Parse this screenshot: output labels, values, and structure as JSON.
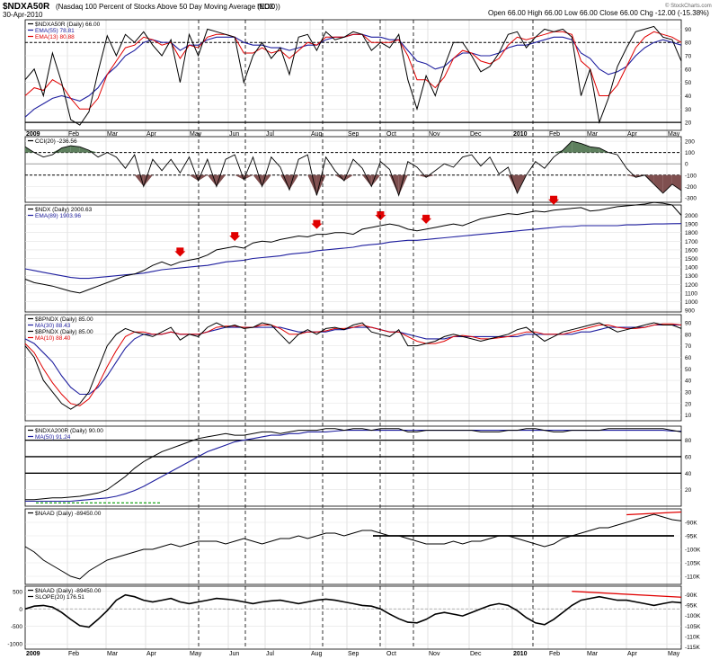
{
  "header": {
    "symbol": "$NDXA50R",
    "description": "(Nasdaq 100 Percent of Stocks Above 50 Day Moving Average (EOD))",
    "exchange": "INDX",
    "date": "30-Apr-2010",
    "ohlc": "Open 66.00  High 66.00  Low 66.00  Close 66.00  Chg -12.00 (-15.38%)",
    "copyright": "© StockCharts.com"
  },
  "x_axis": {
    "months": [
      {
        "label": "2009",
        "bold": true
      },
      {
        "label": "Feb"
      },
      {
        "label": "Mar"
      },
      {
        "label": "Apr"
      },
      {
        "label": "May"
      },
      {
        "label": "Jun"
      },
      {
        "label": "Jul"
      },
      {
        "label": "Aug"
      },
      {
        "label": "Sep"
      },
      {
        "label": "Oct"
      },
      {
        "label": "Nov"
      },
      {
        "label": "Dec"
      },
      {
        "label": "2010",
        "bold": true
      },
      {
        "label": "Feb"
      },
      {
        "label": "Mar"
      },
      {
        "label": "Apr"
      },
      {
        "label": "May"
      }
    ]
  },
  "colors": {
    "price": "#000000",
    "ema": "#1f1f9f",
    "ma": "#e00000",
    "positive_fill": "#5d7f5d",
    "negative_fill": "#7f4f4f",
    "arrow": "#e00000",
    "divergence": "#e00000"
  },
  "panels": [
    {
      "id": "ndxa50r",
      "legend": [
        {
          "text": "$NDXA50R (Daily) 66.00",
          "color": "#000000"
        },
        {
          "text": "EMA(55) 78.81",
          "color": "#1f1f9f"
        },
        {
          "text": "EMA(13) 80.88",
          "color": "#e00000"
        }
      ],
      "ylim": [
        14,
        97
      ],
      "ticks": [
        20,
        30,
        40,
        50,
        60,
        70,
        80,
        90
      ],
      "hlines": [
        80,
        20
      ],
      "series": {
        "price": [
          52,
          60,
          40,
          72,
          50,
          22,
          18,
          28,
          58,
          85,
          70,
          86,
          80,
          88,
          78,
          70,
          82,
          50,
          86,
          70,
          90,
          88,
          86,
          84,
          50,
          70,
          80,
          68,
          76,
          56,
          84,
          86,
          74,
          88,
          82,
          84,
          88,
          86,
          74,
          80,
          76,
          86,
          52,
          30,
          55,
          40,
          62,
          80,
          80,
          70,
          58,
          62,
          72,
          86,
          88,
          76,
          84,
          90,
          88,
          90,
          84,
          40,
          60,
          20,
          38,
          62,
          76,
          88,
          90,
          92,
          84,
          82,
          66
        ],
        "ema": [
          24,
          30,
          34,
          38,
          40,
          38,
          36,
          40,
          46,
          56,
          62,
          70,
          74,
          80,
          82,
          80,
          80,
          74,
          78,
          78,
          82,
          84,
          84,
          84,
          80,
          78,
          78,
          76,
          76,
          74,
          76,
          78,
          78,
          82,
          84,
          84,
          86,
          86,
          84,
          84,
          82,
          82,
          74,
          66,
          64,
          60,
          62,
          68,
          72,
          72,
          70,
          70,
          72,
          76,
          78,
          78,
          80,
          82,
          84,
          84,
          82,
          72,
          68,
          60,
          56,
          58,
          62,
          70,
          76,
          80,
          82,
          80,
          78
        ],
        "ma": [
          40,
          46,
          44,
          52,
          48,
          38,
          30,
          30,
          38,
          56,
          66,
          76,
          78,
          84,
          82,
          78,
          80,
          68,
          78,
          76,
          84,
          86,
          86,
          84,
          72,
          72,
          76,
          72,
          74,
          68,
          74,
          80,
          78,
          84,
          84,
          84,
          86,
          86,
          80,
          80,
          80,
          82,
          70,
          52,
          52,
          46,
          54,
          68,
          74,
          72,
          66,
          64,
          68,
          78,
          84,
          82,
          84,
          86,
          88,
          88,
          86,
          66,
          60,
          40,
          40,
          48,
          62,
          76,
          84,
          88,
          86,
          84,
          80
        ]
      }
    },
    {
      "id": "cci",
      "legend": [
        {
          "text": "CCI(20) -236.56",
          "color": "#000000"
        }
      ],
      "ylim": [
        -340,
        240
      ],
      "ticks": [
        -300,
        -200,
        -100,
        0,
        100,
        200
      ],
      "hlines": [
        100,
        -100
      ],
      "series": {
        "cci": [
          150,
          100,
          60,
          80,
          140,
          160,
          150,
          120,
          60,
          100,
          60,
          -40,
          80,
          -200,
          40,
          -60,
          40,
          -80,
          60,
          -150,
          40,
          -200,
          40,
          80,
          -140,
          60,
          -200,
          60,
          -30,
          -230,
          40,
          80,
          -280,
          60,
          -60,
          -150,
          40,
          -40,
          -200,
          20,
          -50,
          -280,
          20,
          -30,
          -120,
          -60,
          0,
          -30,
          60,
          80,
          -20,
          60,
          -90,
          -30,
          -260,
          -100,
          20,
          -40,
          60,
          120,
          200,
          180,
          150,
          140,
          100,
          80,
          -40,
          -120,
          -100,
          -180,
          -260,
          -180,
          -236
        ]
      }
    },
    {
      "id": "ndx",
      "legend": [
        {
          "text": "$NDX (Daily) 2000.63",
          "color": "#000000"
        },
        {
          "text": "EMA(89) 1903.96",
          "color": "#1f1f9f"
        }
      ],
      "ylim": [
        880,
        2120
      ],
      "ticks": [
        900,
        1000,
        1100,
        1200,
        1300,
        1400,
        1500,
        1600,
        1700,
        1800,
        1900,
        2000
      ],
      "series": {
        "price": [
          1260,
          1220,
          1200,
          1180,
          1150,
          1120,
          1100,
          1140,
          1180,
          1220,
          1260,
          1300,
          1320,
          1360,
          1420,
          1460,
          1420,
          1460,
          1480,
          1500,
          1540,
          1600,
          1620,
          1640,
          1620,
          1680,
          1700,
          1690,
          1720,
          1740,
          1760,
          1750,
          1780,
          1780,
          1800,
          1800,
          1780,
          1840,
          1860,
          1880,
          1900,
          1880,
          1840,
          1820,
          1840,
          1860,
          1880,
          1900,
          1880,
          1920,
          1960,
          1980,
          2000,
          2020,
          2010,
          2030,
          2050,
          2040,
          2060,
          2070,
          2080,
          2090,
          2050,
          2060,
          2080,
          2100,
          2110,
          2120,
          2130,
          2150,
          2140,
          2120,
          2000
        ],
        "ema": [
          1380,
          1360,
          1340,
          1320,
          1300,
          1280,
          1270,
          1270,
          1280,
          1290,
          1300,
          1310,
          1320,
          1330,
          1350,
          1370,
          1380,
          1390,
          1400,
          1410,
          1420,
          1440,
          1460,
          1470,
          1480,
          1500,
          1510,
          1520,
          1530,
          1550,
          1560,
          1570,
          1590,
          1600,
          1610,
          1620,
          1630,
          1650,
          1660,
          1670,
          1690,
          1700,
          1710,
          1710,
          1720,
          1730,
          1740,
          1750,
          1760,
          1770,
          1780,
          1790,
          1800,
          1810,
          1820,
          1830,
          1840,
          1850,
          1860,
          1870,
          1870,
          1880,
          1880,
          1880,
          1880,
          1880,
          1890,
          1890,
          1895,
          1900,
          1900,
          1903,
          1904
        ]
      },
      "arrows": [
        17,
        23,
        32,
        39,
        44,
        58
      ]
    },
    {
      "id": "bpndx",
      "legend": [
        {
          "text": "$BPNDX (Daily) 85.00",
          "color": "#000000"
        },
        {
          "text": "MA(30) 88.43",
          "color": "#1f1f9f"
        },
        {
          "text": "$BPNDX (Daily) 85.00",
          "color": "#000000"
        },
        {
          "text": "MA(10) 88.40",
          "color": "#e00000"
        }
      ],
      "ylim": [
        5,
        97
      ],
      "ticks": [
        10,
        20,
        30,
        40,
        50,
        60,
        70,
        80,
        90
      ],
      "series": {
        "price": [
          70,
          60,
          40,
          30,
          20,
          15,
          20,
          30,
          50,
          70,
          80,
          85,
          82,
          80,
          78,
          82,
          86,
          75,
          80,
          78,
          86,
          90,
          86,
          88,
          85,
          86,
          90,
          88,
          80,
          72,
          80,
          84,
          80,
          85,
          86,
          84,
          88,
          90,
          82,
          80,
          78,
          84,
          70,
          70,
          72,
          74,
          78,
          80,
          78,
          76,
          74,
          76,
          78,
          80,
          84,
          86,
          80,
          74,
          78,
          82,
          84,
          86,
          88,
          90,
          86,
          82,
          84,
          86,
          88,
          90,
          88,
          88,
          85
        ],
        "ma": [
          76,
          72,
          64,
          56,
          44,
          34,
          28,
          28,
          34,
          44,
          56,
          68,
          76,
          80,
          80,
          80,
          82,
          80,
          80,
          80,
          82,
          84,
          86,
          86,
          86,
          86,
          86,
          86,
          86,
          84,
          82,
          82,
          82,
          82,
          84,
          84,
          86,
          86,
          86,
          84,
          82,
          82,
          80,
          78,
          76,
          76,
          76,
          78,
          78,
          78,
          78,
          78,
          78,
          78,
          78,
          80,
          80,
          80,
          80,
          80,
          80,
          82,
          82,
          84,
          86,
          86,
          86,
          86,
          86,
          88,
          88,
          88,
          88
        ],
        "ma10": [
          72,
          64,
          50,
          38,
          28,
          20,
          18,
          24,
          36,
          52,
          66,
          78,
          82,
          82,
          80,
          80,
          82,
          80,
          80,
          80,
          82,
          86,
          87,
          87,
          86,
          86,
          88,
          88,
          85,
          80,
          80,
          82,
          82,
          83,
          85,
          85,
          86,
          88,
          86,
          84,
          82,
          82,
          78,
          74,
          72,
          72,
          74,
          78,
          79,
          78,
          76,
          76,
          77,
          78,
          80,
          82,
          82,
          80,
          80,
          80,
          82,
          84,
          86,
          88,
          88,
          86,
          85,
          85,
          86,
          88,
          89,
          89,
          88
        ]
      }
    },
    {
      "id": "ndxa200r",
      "legend": [
        {
          "text": "$NDXA200R (Daily) 90.00",
          "color": "#000000"
        },
        {
          "text": "MA(50) 91.24",
          "color": "#1f1f9f"
        }
      ],
      "ylim": [
        0,
        97
      ],
      "ticks": [
        20,
        40,
        60,
        80
      ],
      "hlines": [
        80,
        60,
        40
      ],
      "series": {
        "price": [
          8,
          8,
          9,
          10,
          10,
          11,
          12,
          14,
          16,
          20,
          28,
          36,
          46,
          54,
          60,
          66,
          70,
          74,
          78,
          82,
          84,
          86,
          88,
          86,
          86,
          88,
          90,
          90,
          88,
          90,
          92,
          92,
          92,
          94,
          94,
          92,
          94,
          94,
          92,
          94,
          94,
          94,
          90,
          90,
          92,
          92,
          92,
          92,
          92,
          92,
          90,
          90,
          90,
          92,
          92,
          94,
          94,
          92,
          90,
          90,
          92,
          92,
          92,
          92,
          94,
          94,
          94,
          94,
          94,
          94,
          94,
          92,
          90
        ],
        "ma": [
          6,
          6,
          6,
          6,
          6,
          6,
          7,
          8,
          9,
          10,
          12,
          15,
          19,
          24,
          30,
          36,
          42,
          48,
          54,
          60,
          66,
          70,
          74,
          78,
          80,
          82,
          84,
          86,
          86,
          88,
          88,
          90,
          90,
          90,
          91,
          92,
          92,
          92,
          92,
          92,
          92,
          92,
          92,
          92,
          92,
          92,
          92,
          92,
          92,
          92,
          92,
          92,
          92,
          92,
          92,
          92,
          92,
          92,
          92,
          92,
          92,
          92,
          92,
          92,
          92,
          92,
          92,
          92,
          92,
          92,
          92,
          91,
          91
        ]
      }
    },
    {
      "id": "naad",
      "legend": [
        {
          "text": "$NAAD (Daily) -89450.00",
          "color": "#000000"
        }
      ],
      "ylim": [
        -113000,
        -85000
      ],
      "ticks": [
        -110000,
        -105000,
        -100000,
        -95000,
        -90000
      ],
      "tick_labels": [
        "-110K",
        "-105K",
        "-100K",
        "-95K",
        "-90K"
      ],
      "series": {
        "price": [
          -99000,
          -101000,
          -104000,
          -106000,
          -108000,
          -110000,
          -111000,
          -108000,
          -106000,
          -104000,
          -103000,
          -102000,
          -101000,
          -100000,
          -100000,
          -99000,
          -98000,
          -99000,
          -98000,
          -97000,
          -97000,
          -97000,
          -98000,
          -97000,
          -96000,
          -97000,
          -98000,
          -97000,
          -96000,
          -96000,
          -95000,
          -96000,
          -95000,
          -94000,
          -94000,
          -95000,
          -94000,
          -93000,
          -93000,
          -94000,
          -95000,
          -95000,
          -96000,
          -97000,
          -98000,
          -98000,
          -98000,
          -97000,
          -98000,
          -97000,
          -97000,
          -96000,
          -95000,
          -95000,
          -96000,
          -97000,
          -98000,
          -99000,
          -98000,
          -96000,
          -95000,
          -94000,
          -93000,
          -92000,
          -92000,
          -91000,
          -90000,
          -89000,
          -88000,
          -87000,
          -88000,
          -89000,
          -89450
        ]
      },
      "support": [
        -95000
      ],
      "divergence": [
        [
          66,
          -88500
        ],
        [
          72,
          -87500
        ]
      ]
    },
    {
      "id": "naad_slope",
      "legend": [
        {
          "text": "$NAAD (Daily) -89450.00",
          "color": "#000000"
        },
        {
          "text": "SLOPE(20) 176.51",
          "color": "#000000"
        }
      ],
      "ylim": [
        -1150,
        650
      ],
      "ticks": [
        -1000,
        -500,
        0,
        500
      ],
      "right_ylim": [
        -116000,
        -86000
      ],
      "right_ticks": [
        -115000,
        -110000,
        -105000,
        -100000,
        -95000,
        -90000
      ],
      "right_tick_labels": [
        "-115K",
        "-110K",
        "-105K",
        "-100K",
        "-95K",
        "-90K"
      ],
      "series": {
        "slope": [
          0,
          80,
          100,
          50,
          -100,
          -300,
          -480,
          -520,
          -300,
          -50,
          250,
          400,
          350,
          250,
          200,
          250,
          300,
          200,
          150,
          200,
          250,
          300,
          280,
          250,
          200,
          150,
          200,
          230,
          250,
          200,
          150,
          200,
          250,
          280,
          250,
          200,
          150,
          100,
          80,
          0,
          -150,
          -280,
          -380,
          -400,
          -300,
          -150,
          -100,
          -150,
          -200,
          -100,
          0,
          100,
          150,
          100,
          -50,
          -250,
          -400,
          -450,
          -300,
          -100,
          100,
          250,
          300,
          350,
          300,
          250,
          250,
          200,
          150,
          100,
          150,
          200,
          176
        ]
      },
      "divergence": [
        [
          60,
          350
        ],
        [
          72,
          180
        ]
      ]
    }
  ]
}
